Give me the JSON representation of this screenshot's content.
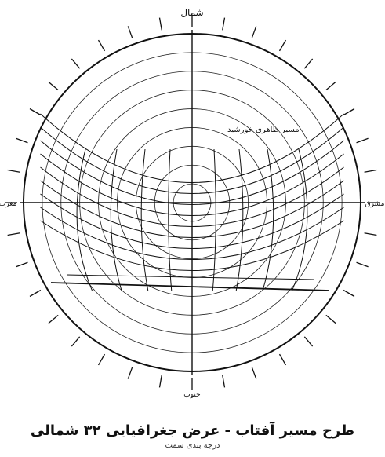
{
  "diagram": {
    "north_label": "شمال",
    "south_mark": "جنوب",
    "east_label": "مشرق",
    "west_label": "مغرب",
    "curve_label": "مسیر ظاهری خورشید",
    "caption_main": "طرح مسیر آفتاب - عرض جغرافیایی ۳۲ شمالی",
    "caption_sub": "درجه بندی سمت"
  }
}
